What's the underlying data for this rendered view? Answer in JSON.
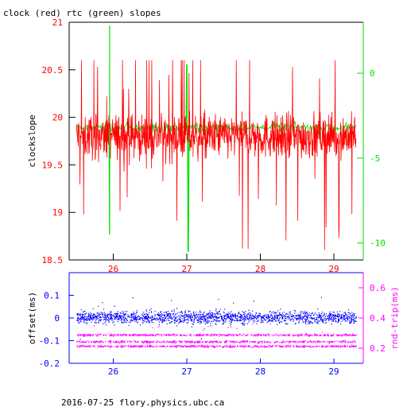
{
  "title": "clock (red) rtc (green) slopes",
  "footer": "2016-07-25 flory.physics.ubc.ca",
  "colors": {
    "clock": "#ff0000",
    "rtc": "#00e000",
    "offset": "#0000ff",
    "rndtrip": "#ff00ff",
    "axis": "#000000"
  },
  "chart_data": [
    {
      "type": "line",
      "title": "clock (red) rtc (green) slopes",
      "xlim": [
        25.4,
        29.4
      ],
      "xticks": [
        26,
        27,
        28,
        29
      ],
      "ylabel_left": "clockslope",
      "ylim_left": [
        18.5,
        21
      ],
      "yticks_left": [
        "18.5",
        "19",
        "19.5",
        "20",
        "20.5",
        "21"
      ],
      "ylim_right": [
        -11,
        3
      ],
      "yticks_right": [
        "-10",
        "-5",
        "0"
      ],
      "series": [
        {
          "axis": "left",
          "color": "#ff0000",
          "x_range": [
            25.5,
            29.3
          ],
          "center": 19.8,
          "spread": 0.25,
          "spike_min": 18.6,
          "spike_max": 20.6
        },
        {
          "axis": "right",
          "color": "#00e000",
          "x_range": [
            25.5,
            29.3
          ],
          "center": -3.2,
          "spread": 0.5,
          "spikes": [
            [
              25.95,
              2.8
            ],
            [
              25.95,
              -9.5
            ],
            [
              27.02,
              -10.5
            ],
            [
              27.0,
              0.5
            ]
          ]
        }
      ]
    },
    {
      "type": "scatter",
      "xlim": [
        25.4,
        29.4
      ],
      "xticks": [
        26,
        27,
        28,
        29
      ],
      "ylabel_left": "offset(ms)",
      "ylim_left": [
        -0.2,
        0.2
      ],
      "yticks_left": [
        "-0.2",
        "-0.1",
        "0",
        "0.1"
      ],
      "ylabel_right": "rnd-trip(ms)",
      "ylim_right": [
        0.1,
        0.7
      ],
      "yticks_right": [
        "0.2",
        "0.4",
        "0.6"
      ],
      "series": [
        {
          "axis": "left",
          "color": "#0000ff",
          "x_range": [
            25.5,
            29.3
          ],
          "center": 0.005,
          "spread": 0.035
        },
        {
          "axis": "right",
          "color": "#ff00ff",
          "x_range": [
            25.5,
            29.3
          ],
          "bands": [
            0.215,
            0.245,
            0.29
          ]
        }
      ]
    }
  ]
}
